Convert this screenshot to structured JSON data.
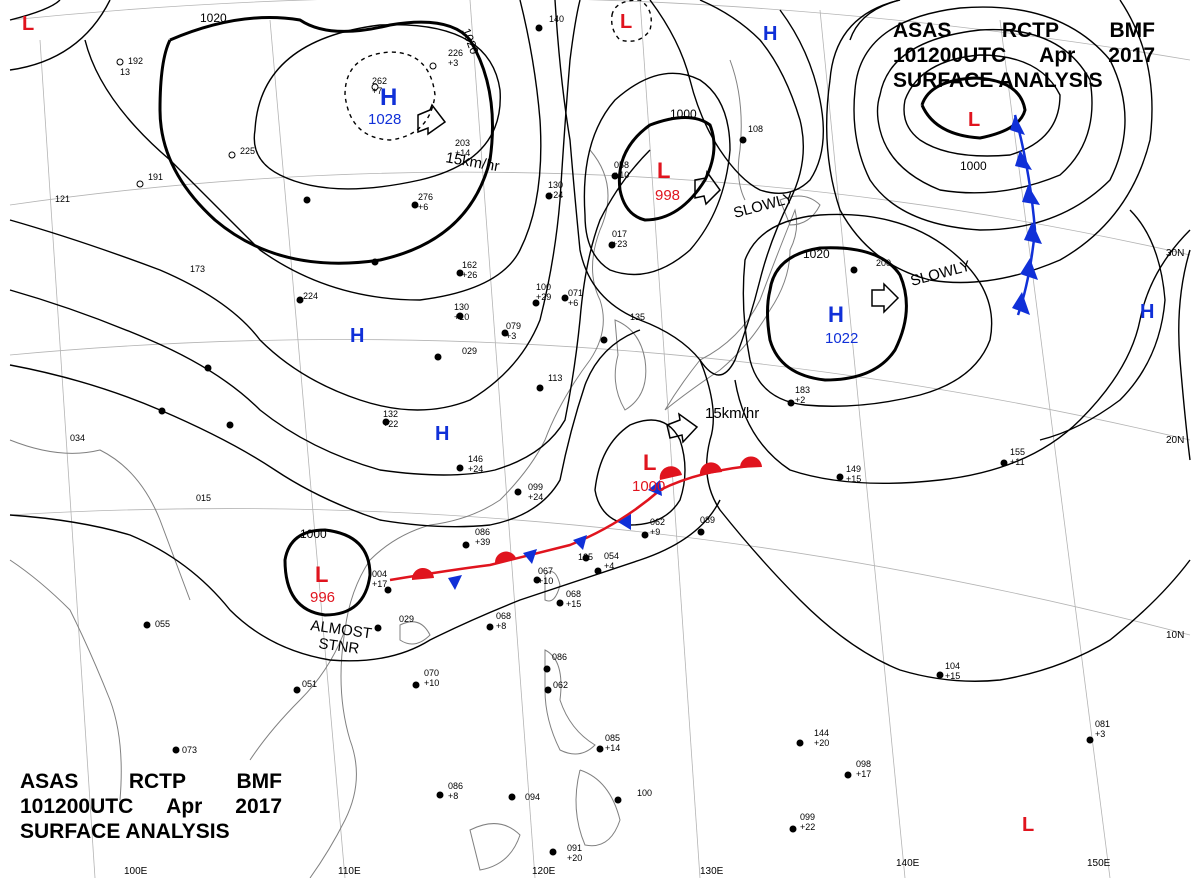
{
  "header": {
    "agency": "ASAS",
    "station": "RCTP",
    "code": "BMF",
    "time": "101200UTC",
    "month": "Apr",
    "year": "2017",
    "product": "SURFACE ANALYSIS"
  },
  "colors": {
    "isobar": "#000000",
    "high": "#1030d8",
    "low": "#e0141e",
    "cold_front": "#1030d8",
    "warm_front": "#e0141e",
    "coast": "#808080",
    "grid": "#b4b4b4"
  },
  "grid_labels": {
    "lon": [
      "100E",
      "110E",
      "120E",
      "130E",
      "140E",
      "150E"
    ],
    "lat": [
      "30N",
      "20N",
      "10N"
    ]
  },
  "systems": [
    {
      "kind": "H",
      "pressure": "1028"
    },
    {
      "kind": "L",
      "pressure": "998"
    },
    {
      "kind": "L",
      "pressure": "1000"
    },
    {
      "kind": "H",
      "pressure": "1022"
    },
    {
      "kind": "L",
      "pressure": "996"
    },
    {
      "kind": "H",
      "pressure": ""
    },
    {
      "kind": "H",
      "pressure": ""
    },
    {
      "kind": "H",
      "pressure": ""
    },
    {
      "kind": "H",
      "pressure": ""
    },
    {
      "kind": "L",
      "pressure": ""
    },
    {
      "kind": "L",
      "pressure": ""
    },
    {
      "kind": "L",
      "pressure": ""
    },
    {
      "kind": "L",
      "pressure": ""
    }
  ],
  "isobar_labels": [
    "1020",
    "1020",
    "1000",
    "1000",
    "1020",
    "1000"
  ],
  "motions": [
    "15km/hr",
    "SLOWLY",
    "SLOWLY",
    "15km/hr",
    "ALMOST",
    "STNR"
  ],
  "station_reports": [
    [
      "192",
      "13"
    ],
    [
      "225"
    ],
    [
      "191",
      "121"
    ],
    [
      "262",
      "+7"
    ],
    [
      "226",
      "+3"
    ],
    [
      "203",
      "+14"
    ],
    [
      "276",
      "+6"
    ],
    [
      "173"
    ],
    [
      "224"
    ],
    [
      "162",
      "+26"
    ],
    [
      "130",
      "+10"
    ],
    [
      "029"
    ],
    [
      "132",
      "+22"
    ],
    [
      "146",
      "+24"
    ],
    [
      "099",
      "+24"
    ],
    [
      "086",
      "+39"
    ],
    [
      "079",
      "+3"
    ],
    [
      "071",
      "+6"
    ],
    [
      "100",
      "+29"
    ],
    [
      "135"
    ],
    [
      "113"
    ],
    [
      "034"
    ],
    [
      "015"
    ],
    [
      "004",
      "+17"
    ],
    [
      "029"
    ],
    [
      "051"
    ],
    [
      "070",
      "+10"
    ],
    [
      "067",
      "+10"
    ],
    [
      "068",
      "+15"
    ],
    [
      "054",
      "+4"
    ],
    [
      "062",
      "+9"
    ],
    [
      "068",
      "+8"
    ],
    [
      "086"
    ],
    [
      "062"
    ],
    [
      "085",
      "+14"
    ],
    [
      "094"
    ],
    [
      "100"
    ],
    [
      "091",
      "+20"
    ],
    [
      "073"
    ],
    [
      "086",
      "+8"
    ],
    [
      "149",
      "+15"
    ],
    [
      "155",
      "+11"
    ],
    [
      "104",
      "+15"
    ],
    [
      "144",
      "+20"
    ],
    [
      "098",
      "+17"
    ],
    [
      "099",
      "+22"
    ],
    [
      "081",
      "+3"
    ],
    [
      "183",
      "+2"
    ],
    [
      "200"
    ],
    [
      "017",
      "+23"
    ],
    [
      "058",
      "+10"
    ],
    [
      "130",
      "+24"
    ],
    [
      "140"
    ],
    [
      "108"
    ],
    [
      "055"
    ],
    [
      "125"
    ],
    [
      "089"
    ]
  ]
}
